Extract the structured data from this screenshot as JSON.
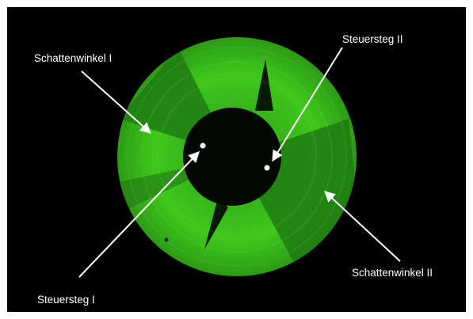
{
  "labels": {
    "shadow_angle_1": "Schattenwinkel I",
    "shadow_angle_2": "Schattenwinkel II",
    "control_web_1": "Steuersteg I",
    "control_web_2": "Steuersteg II"
  },
  "colors": {
    "background": "#000000",
    "bright_green": "#4ee81f",
    "dark_green": "#1f7d12",
    "annotation": "#ffffff"
  }
}
